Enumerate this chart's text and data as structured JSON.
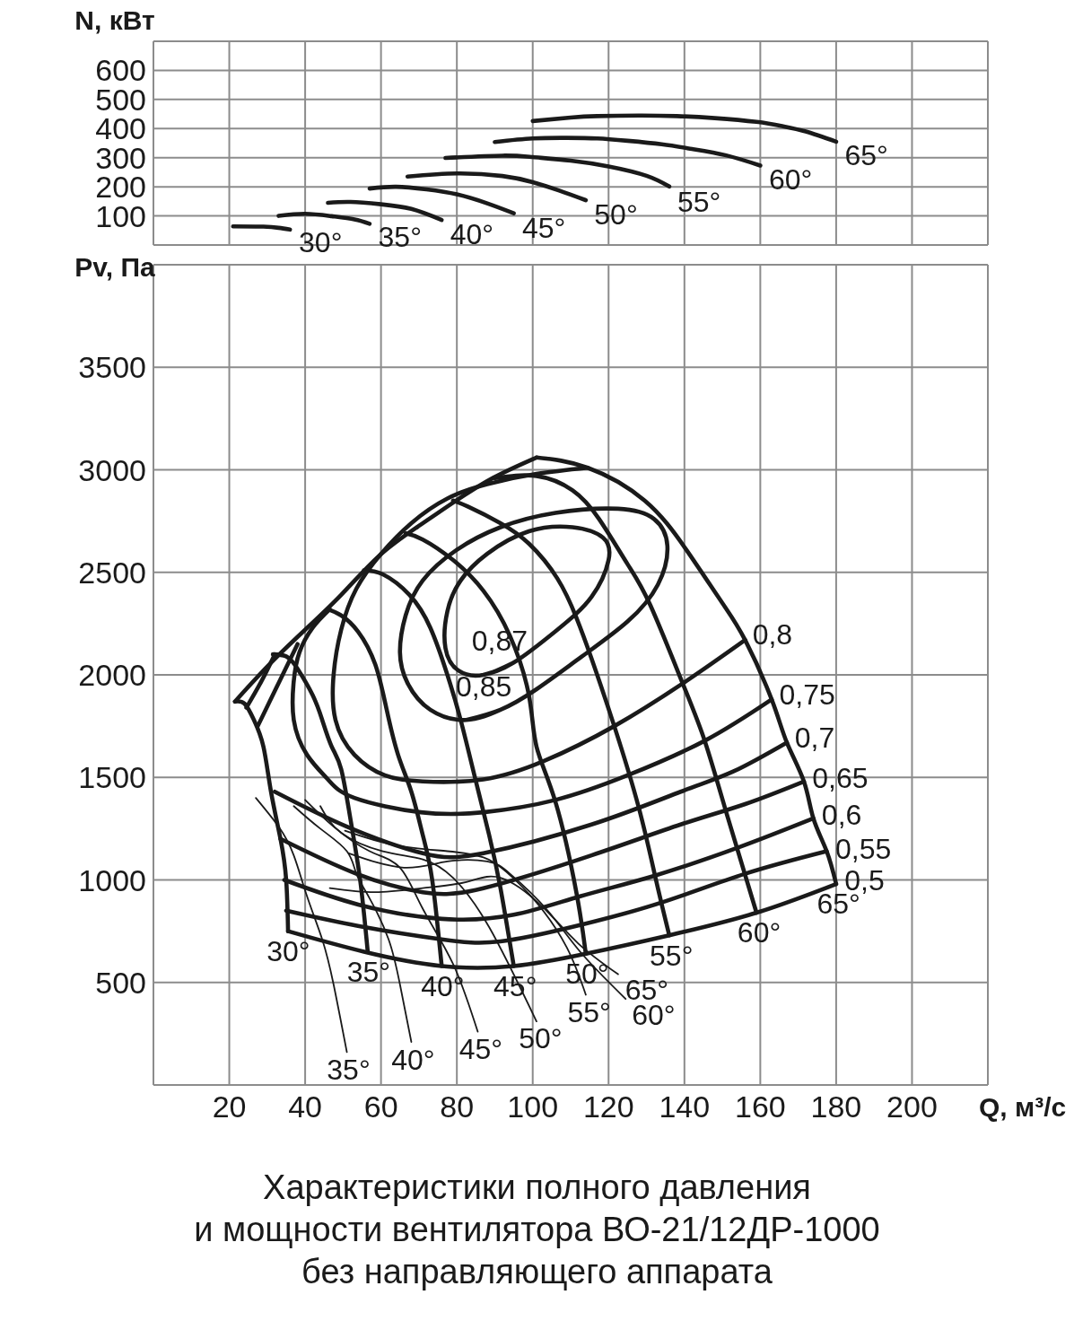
{
  "chart_data": [
    {
      "type": "line",
      "ylabel": "N, кВт",
      "xlim": [
        0,
        220
      ],
      "xticks": [
        20,
        40,
        60,
        80,
        100,
        120,
        140,
        160,
        180,
        200
      ],
      "ylim": [
        0,
        700
      ],
      "yticks": [
        100,
        200,
        300,
        400,
        500,
        600
      ],
      "tick_labels": "y",
      "grid": true,
      "series": [
        {
          "name": "30°",
          "color": "#1a1a1a",
          "x": [
            21,
            29,
            33,
            36
          ],
          "values": [
            64,
            63,
            59,
            53
          ]
        },
        {
          "name": "35°",
          "color": "#1a1a1a",
          "x": [
            33,
            40,
            47,
            53,
            57
          ],
          "values": [
            100,
            107,
            99,
            88,
            73
          ]
        },
        {
          "name": "40°",
          "color": "#1a1a1a",
          "x": [
            46,
            52,
            60,
            68,
            76
          ],
          "values": [
            145,
            148,
            140,
            124,
            86
          ]
        },
        {
          "name": "45°",
          "color": "#1a1a1a",
          "x": [
            57,
            64,
            72,
            80,
            88,
            95
          ],
          "values": [
            194,
            200,
            191,
            174,
            143,
            109
          ]
        },
        {
          "name": "50°",
          "color": "#1a1a1a",
          "x": [
            67,
            80,
            92,
            100,
            107,
            114
          ],
          "values": [
            235,
            246,
            237,
            216,
            187,
            154
          ]
        },
        {
          "name": "55°",
          "color": "#1a1a1a",
          "x": [
            77,
            92,
            100,
            110,
            120,
            130,
            136
          ],
          "values": [
            299,
            307,
            302,
            290,
            270,
            238,
            201
          ]
        },
        {
          "name": "60°",
          "color": "#1a1a1a",
          "x": [
            90,
            100,
            109,
            117,
            125,
            134,
            142,
            151,
            160
          ],
          "values": [
            354,
            366,
            368,
            366,
            358,
            346,
            330,
            308,
            273
          ]
        },
        {
          "name": "65°",
          "color": "#1a1a1a",
          "x": [
            100,
            110,
            117,
            128,
            138,
            148,
            159,
            166,
            172,
            180
          ],
          "values": [
            426,
            438,
            443,
            445,
            443,
            436,
            423,
            408,
            390,
            355
          ]
        }
      ]
    },
    {
      "type": "line",
      "title": "Характеристики полного давления\nи мощности вентилятора ВО-21/12ДР-1000\nбез направляющего аппарата",
      "xlabel": "Q, м³/с",
      "ylabel": "Pv, Па",
      "xlim": [
        0,
        220
      ],
      "xticks": [
        20,
        40,
        60,
        80,
        100,
        120,
        140,
        160,
        180,
        200
      ],
      "ylim": [
        0,
        4000
      ],
      "yticks": [
        500,
        1000,
        1500,
        2000,
        2500,
        3000,
        3500
      ],
      "grid": true,
      "series": [
        {
          "name": "30°",
          "color": "#1a1a1a",
          "x": [
            21.5,
            24,
            26.5,
            29,
            31,
            33.5,
            35,
            35.5
          ],
          "values": [
            1870,
            1860,
            1780,
            1650,
            1430,
            1200,
            1000,
            750
          ]
        },
        {
          "name": "35°",
          "color": "#1a1a1a",
          "x": [
            31.5,
            35,
            38,
            42,
            44.5,
            47,
            49.5,
            52,
            54.5,
            56.5
          ],
          "values": [
            2100,
            2090,
            2030,
            1900,
            1780,
            1650,
            1540,
            1290,
            1000,
            650
          ]
        },
        {
          "name": "40°",
          "color": "#1a1a1a",
          "x": [
            46,
            49.5,
            54,
            58.5,
            61.5,
            64.5,
            68,
            71,
            73.5,
            76
          ],
          "values": [
            2320,
            2290,
            2210,
            2050,
            1830,
            1610,
            1430,
            1220,
            1000,
            580
          ]
        },
        {
          "name": "45°",
          "color": "#1a1a1a",
          "x": [
            55.5,
            60.5,
            67.5,
            73,
            77.5,
            81,
            84.5,
            88.5,
            91.5,
            95
          ],
          "values": [
            2510,
            2490,
            2390,
            2230,
            2000,
            1780,
            1520,
            1220,
            960,
            580
          ]
        },
        {
          "name": "50°",
          "color": "#1a1a1a",
          "x": [
            66.5,
            71,
            79,
            87,
            94,
            99,
            101,
            106,
            111.5,
            114
          ],
          "values": [
            2690,
            2660,
            2560,
            2410,
            2190,
            1900,
            1650,
            1380,
            940,
            640
          ]
        },
        {
          "name": "55°",
          "color": "#1a1a1a",
          "x": [
            79,
            83,
            91.5,
            99,
            106.5,
            111.5,
            115.5,
            121.5,
            128,
            132.5,
            136
          ],
          "values": [
            2850,
            2820,
            2740,
            2640,
            2470,
            2280,
            2080,
            1750,
            1350,
            1000,
            730
          ]
        },
        {
          "name": "60°",
          "color": "#1a1a1a",
          "x": [
            90,
            101,
            110.5,
            117.5,
            125,
            131,
            139.5,
            145.5,
            151.5,
            159
          ],
          "values": [
            2960,
            2970,
            2900,
            2760,
            2540,
            2340,
            1960,
            1670,
            1300,
            840
          ]
        },
        {
          "name": "65°",
          "color": "#1a1a1a",
          "x": [
            101,
            114.5,
            129.5,
            140.5,
            150,
            156,
            163,
            167,
            171.5,
            174,
            177.5,
            180
          ],
          "values": [
            3060,
            3010,
            2850,
            2610,
            2350,
            2170,
            1880,
            1670,
            1480,
            1300,
            1140,
            980
          ]
        },
        {
          "color": "#1a1a1a",
          "x": [
            21.5,
            30.5,
            40,
            49.5,
            59.5,
            69.5,
            79,
            89.5,
            101
          ],
          "values": [
            1870,
            2050,
            2220,
            2390,
            2580,
            2720,
            2840,
            2960,
            3060
          ]
        },
        {
          "name": "0,87",
          "color": "#1a1a1a",
          "x": [
            95,
            87,
            80.5,
            77,
            77.5,
            81,
            88,
            99,
            110.5,
            118.5,
            120,
            115.5,
            106.5,
            95,
            87
          ],
          "values": [
            2060,
            2000,
            2020,
            2130,
            2310,
            2460,
            2590,
            2700,
            2720,
            2670,
            2560,
            2380,
            2220,
            2060,
            2000
          ]
        },
        {
          "name": "0,85",
          "color": "#1a1a1a",
          "x": [
            91.5,
            82.5,
            73,
            67,
            65,
            66.5,
            71,
            80,
            91.5,
            106,
            122.5,
            132,
            135.5,
            133,
            125,
            113,
            101,
            91.5,
            82.5
          ],
          "values": [
            1830,
            1780,
            1830,
            1960,
            2110,
            2290,
            2460,
            2610,
            2720,
            2790,
            2810,
            2760,
            2630,
            2440,
            2260,
            2090,
            1930,
            1830,
            1780
          ]
        },
        {
          "name": "0,8",
          "color": "#1a1a1a",
          "x": [
            114.5,
            101,
            88,
            77.5,
            68,
            60,
            53.5,
            49.5,
            47.5,
            48,
            53,
            61,
            71,
            87,
            103,
            121.5,
            140.5,
            156
          ],
          "values": [
            3010,
            2980,
            2930,
            2860,
            2740,
            2590,
            2420,
            2220,
            2000,
            1780,
            1610,
            1510,
            1480,
            1490,
            1580,
            1750,
            1970,
            2170
          ]
        },
        {
          "name": "0,75",
          "color": "#1a1a1a",
          "x": [
            46.5,
            42,
            38.5,
            37,
            37,
            40.5,
            46,
            53,
            70.5,
            87,
            106,
            125,
            145.5,
            163
          ],
          "values": [
            2320,
            2230,
            2110,
            1970,
            1780,
            1610,
            1490,
            1400,
            1330,
            1330,
            1390,
            1510,
            1680,
            1880
          ]
        },
        {
          "name": "0,7",
          "color": "#1a1a1a",
          "x": [
            32,
            51,
            71,
            87,
            115.5,
            139,
            153,
            167
          ],
          "values": [
            1430,
            1260,
            1130,
            1130,
            1270,
            1430,
            1530,
            1670
          ]
        },
        {
          "name": "0,65",
          "color": "#1a1a1a",
          "x": [
            33.5,
            53.5,
            71,
            87,
            115.5,
            139,
            156,
            171.5
          ],
          "values": [
            1200,
            1030,
            940,
            960,
            1120,
            1270,
            1370,
            1480
          ]
        },
        {
          "name": "0,6",
          "color": "#1a1a1a",
          "x": [
            34.5,
            54,
            76,
            95,
            112.5,
            132,
            154.5,
            174
          ],
          "values": [
            1000,
            880,
            810,
            830,
            920,
            1020,
            1160,
            1300
          ]
        },
        {
          "name": "0,55",
          "color": "#1a1a1a",
          "x": [
            35,
            55.5,
            76,
            91.5,
            112.5,
            134,
            156,
            177.5
          ],
          "values": [
            850,
            770,
            710,
            700,
            780,
            890,
            1030,
            1140
          ]
        },
        {
          "name": "0,5",
          "color": "#1a1a1a",
          "x": [
            35.5,
            55.5,
            76,
            95,
            114,
            136,
            159,
            180
          ],
          "values": [
            750,
            650,
            580,
            580,
            640,
            730,
            840,
            980
          ]
        },
        {
          "name": "35°",
          "color": "#1a1a1a",
          "x": [
            27,
            33,
            37,
            40.5,
            44.5,
            47.5,
            51
          ],
          "values": [
            1400,
            1260,
            1120,
            920,
            710,
            490,
            160
          ]
        },
        {
          "name": "40°",
          "color": "#1a1a1a",
          "x": [
            37,
            44,
            51,
            53.5,
            57,
            62,
            65,
            68
          ],
          "values": [
            1360,
            1250,
            1140,
            1030,
            910,
            710,
            490,
            210
          ]
        },
        {
          "name": "45°",
          "color": "#1a1a1a",
          "x": [
            40,
            47.5,
            57,
            65,
            71,
            79,
            85.5
          ],
          "values": [
            1390,
            1260,
            1140,
            1060,
            860,
            590,
            260
          ]
        },
        {
          "name": "50°",
          "color": "#1a1a1a",
          "x": [
            44,
            49.5,
            60.5,
            71,
            79,
            88.5,
            101
          ],
          "values": [
            1360,
            1230,
            1140,
            1100,
            1010,
            770,
            310
          ]
        },
        {
          "name": "55°",
          "color": "#1a1a1a",
          "x": [
            50.5,
            63.5,
            77.5,
            87,
            93,
            101,
            109,
            114
          ],
          "values": [
            1240,
            1170,
            1140,
            1110,
            1040,
            890,
            670,
            440
          ]
        },
        {
          "name": "60°",
          "color": "#1a1a1a",
          "x": [
            51.5,
            66,
            77.5,
            88,
            94,
            103.5,
            112.5,
            124.5
          ],
          "values": [
            1130,
            1060,
            1090,
            1090,
            1030,
            860,
            650,
            420
          ]
        },
        {
          "name": "65°",
          "color": "#1a1a1a",
          "x": [
            46.5,
            58.5,
            71,
            82.5,
            91.5,
            102.5,
            112,
            122.5
          ],
          "values": [
            960,
            940,
            960,
            990,
            1010,
            870,
            690,
            540
          ]
        },
        {
          "color": "#1a1a1a",
          "x": [
            24.5,
            28.5,
            32
          ],
          "values": [
            1840,
            1970,
            2100
          ]
        },
        {
          "color": "#1a1a1a",
          "x": [
            27.5,
            33,
            38
          ],
          "values": [
            1750,
            1960,
            2150
          ]
        }
      ]
    }
  ]
}
